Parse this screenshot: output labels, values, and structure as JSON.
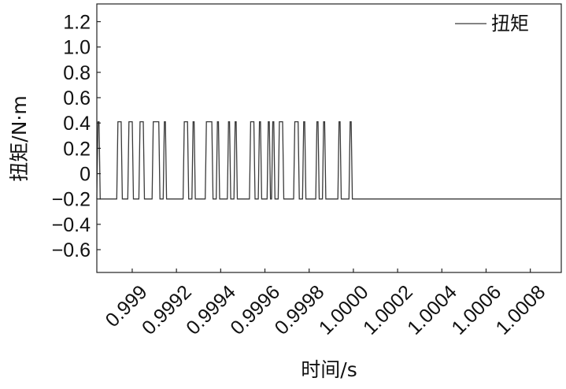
{
  "chart_data": {
    "type": "line",
    "title": "",
    "xlabel": "时间/s",
    "ylabel": "扭矩/N·m",
    "xlim": [
      0.99884,
      1.00094
    ],
    "ylim": [
      -0.78,
      1.34
    ],
    "x_ticks": [
      0.999,
      0.9992,
      0.9994,
      0.9996,
      0.9998,
      1.0,
      1.0002,
      1.0004,
      1.0006,
      1.0008
    ],
    "x_tick_labels": [
      "0.999",
      "0.9992",
      "0.9994",
      "0.9996",
      "0.9998",
      "1.0000",
      "1.0002",
      "1.0004",
      "1.0006",
      "1.0008"
    ],
    "y_ticks": [
      1.2,
      1.0,
      0.8,
      0.6,
      0.4,
      0.2,
      0.0,
      -0.2,
      -0.4,
      -0.6
    ],
    "y_tick_labels": [
      "1.2",
      "1.0",
      "0.8",
      "0.6",
      "0.4",
      "0.2",
      "0",
      "−0.2",
      "−0.4",
      "−0.6"
    ],
    "grid": false,
    "legend": {
      "position": "top-right",
      "entries": [
        "扭矩"
      ]
    },
    "series": [
      {
        "name": "扭矩",
        "color": "#3a3a3a",
        "high": 0.41,
        "low": -0.2,
        "pulses": [
          [
            0.99884,
            0.99885
          ],
          [
            0.99893,
            0.99895
          ],
          [
            0.99898,
            0.999
          ],
          [
            0.99903,
            0.99905
          ],
          [
            0.99909,
            0.99912
          ],
          [
            0.99914,
            0.99915
          ],
          [
            0.99923,
            0.99925
          ],
          [
            0.99927,
            0.99928
          ],
          [
            0.99933,
            0.99936
          ],
          [
            0.99938,
            0.99939
          ],
          [
            0.99943,
            0.99944
          ],
          [
            0.99946,
            0.99947
          ],
          [
            0.99953,
            0.99955
          ],
          [
            0.99957,
            0.99958
          ],
          [
            0.99961,
            0.99962
          ],
          [
            0.99963,
            0.99964
          ],
          [
            0.99966,
            0.99968
          ],
          [
            0.99973,
            0.99975
          ],
          [
            0.99977,
            0.99978
          ],
          [
            0.99983,
            0.99984
          ],
          [
            0.99986,
            0.99987
          ],
          [
            0.99993,
            0.99994
          ],
          [
            0.99998,
            0.99999
          ]
        ],
        "end_x": 1.00094
      }
    ]
  }
}
